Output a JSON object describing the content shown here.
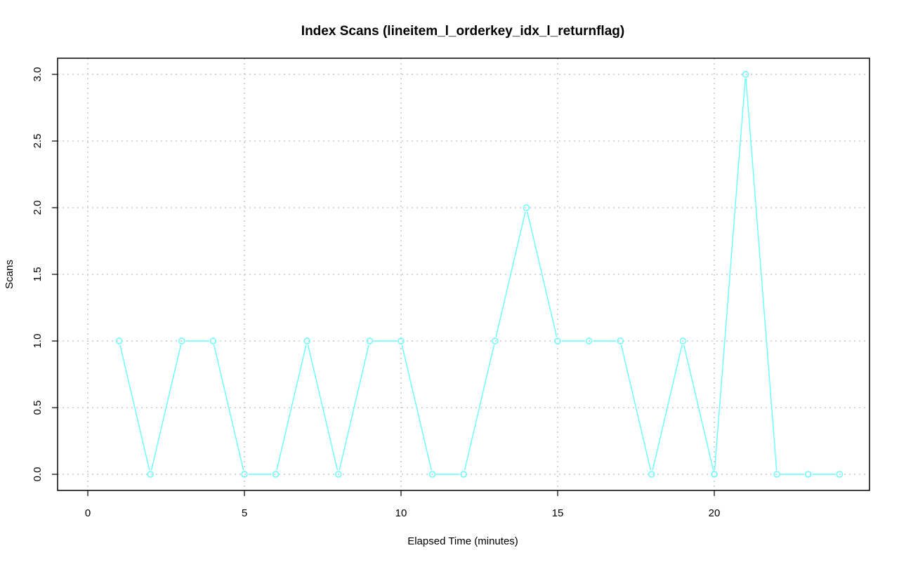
{
  "chart_data": {
    "type": "line",
    "title": "Index Scans (lineitem_l_orderkey_idx_l_returnflag)",
    "xlabel": "Elapsed Time (minutes)",
    "ylabel": "Scans",
    "xlim": [
      0,
      24
    ],
    "ylim": [
      0,
      3
    ],
    "x_ticks": [
      "0",
      "5",
      "10",
      "15",
      "20"
    ],
    "y_ticks": [
      "0.0",
      "0.5",
      "1.0",
      "1.5",
      "2.0",
      "2.5",
      "3.0"
    ],
    "grid": true,
    "series": [
      {
        "color": "#66ffff",
        "x": [
          1,
          2,
          3,
          4,
          5,
          6,
          7,
          8,
          9,
          10,
          11,
          12,
          13,
          14,
          15,
          16,
          17,
          18,
          19,
          20,
          21,
          22,
          23,
          24
        ],
        "values": [
          1,
          0,
          1,
          1,
          0,
          0,
          1,
          0,
          1,
          1,
          0,
          0,
          1,
          2,
          1,
          1,
          1,
          0,
          1,
          0,
          3,
          0,
          0,
          0
        ]
      }
    ]
  }
}
